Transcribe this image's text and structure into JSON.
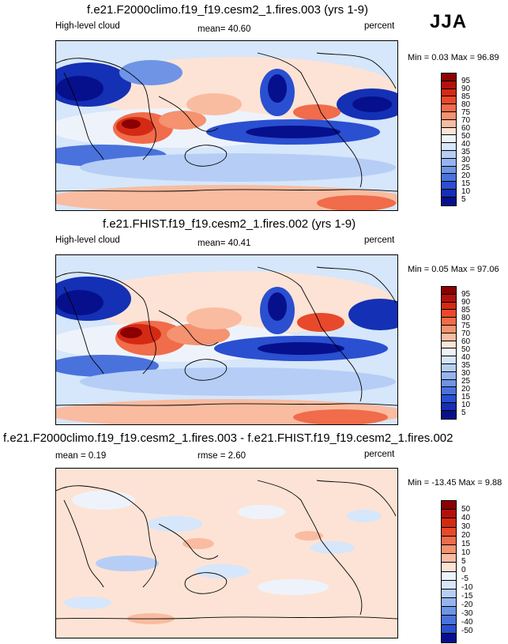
{
  "season": "JJA",
  "panels": [
    {
      "title": "f.e21.F2000climo.f19_f19.cesm2_1.fires.003 (yrs 1-9)",
      "left_label": "High-level cloud",
      "mid_label": "mean=  40.60",
      "right_label": "percent",
      "minmax": "Min =   0.03 Max =  96.89",
      "levels": [
        "95",
        "90",
        "85",
        "80",
        "75",
        "70",
        "60",
        "50",
        "40",
        "35",
        "30",
        "25",
        "20",
        "15",
        "10",
        "5"
      ],
      "colors": [
        "#8b0000",
        "#b3120b",
        "#d42a14",
        "#e8492a",
        "#f06c4a",
        "#f5926f",
        "#f9bca1",
        "#fde3d5",
        "#eef3fb",
        "#d6e6fb",
        "#b6cef6",
        "#95b4ef",
        "#6f94e6",
        "#4a72dc",
        "#2a4fd0",
        "#1430b5",
        "#06108c"
      ]
    },
    {
      "title": "f.e21.FHIST.f19_f19.cesm2_1.fires.002 (yrs 1-9)",
      "left_label": "High-level cloud",
      "mid_label": "mean=  40.41",
      "right_label": "percent",
      "minmax": "Min =   0.05 Max =  97.06",
      "levels": [
        "95",
        "90",
        "85",
        "80",
        "75",
        "70",
        "60",
        "50",
        "40",
        "35",
        "30",
        "25",
        "20",
        "15",
        "10",
        "5"
      ],
      "colors": [
        "#8b0000",
        "#b3120b",
        "#d42a14",
        "#e8492a",
        "#f06c4a",
        "#f5926f",
        "#f9bca1",
        "#fde3d5",
        "#eef3fb",
        "#d6e6fb",
        "#b6cef6",
        "#95b4ef",
        "#6f94e6",
        "#4a72dc",
        "#2a4fd0",
        "#1430b5",
        "#06108c"
      ]
    },
    {
      "title": "f.e21.F2000climo.f19_f19.cesm2_1.fires.003 - f.e21.FHIST.f19_f19.cesm2_1.fires.002",
      "left_label": "mean =   0.19",
      "mid_label": "rmse =   2.60",
      "right_label": "percent",
      "minmax": "Min = -13.45 Max =   9.88",
      "levels": [
        "50",
        "40",
        "30",
        "20",
        "15",
        "10",
        "5",
        "0",
        "-5",
        "-10",
        "-15",
        "-20",
        "-30",
        "-40",
        "-50"
      ],
      "colors": [
        "#8b0000",
        "#b3120b",
        "#d42a14",
        "#e8492a",
        "#f06c4a",
        "#f5926f",
        "#f9bca1",
        "#fde3d5",
        "#eef3fb",
        "#d6e6fb",
        "#b6cef6",
        "#95b4ef",
        "#6f94e6",
        "#4a72dc",
        "#2a4fd0",
        "#06108c"
      ]
    }
  ]
}
